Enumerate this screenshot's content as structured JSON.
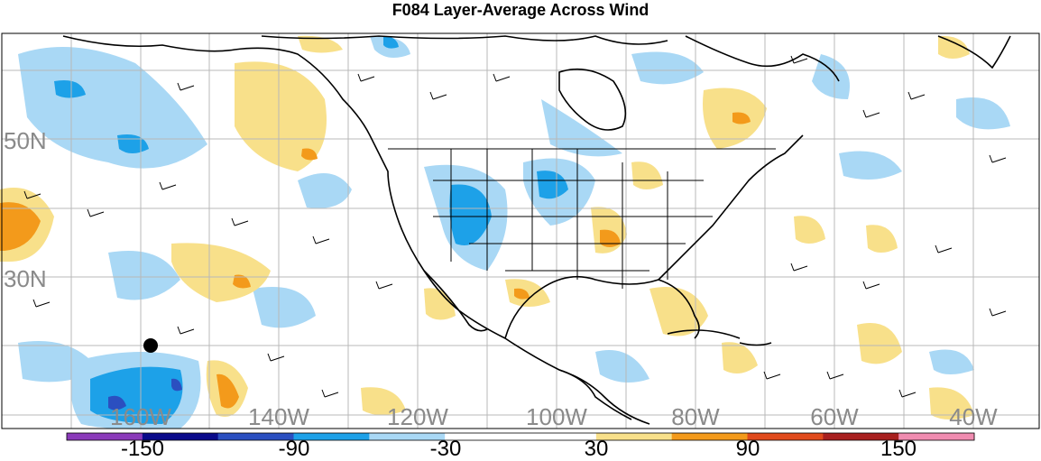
{
  "title": "F084 Layer-Average Across Wind",
  "map": {
    "lat_labels": [
      "50N",
      "30N"
    ],
    "lon_labels": [
      "160W",
      "140W",
      "120W",
      "100W",
      "80W",
      "60W",
      "40W"
    ],
    "marker": "black-dot"
  },
  "colorbar": {
    "colors": [
      "#8a3ab9",
      "#0a0a8a",
      "#2b4fc0",
      "#1da1e8",
      "#a9d8f5",
      "#ffffff",
      "#ffffff",
      "#f8e08a",
      "#f39a1b",
      "#e04a1c",
      "#a8201f",
      "#f08cb0"
    ],
    "tick_labels": [
      "-150",
      "-90",
      "-30",
      "30",
      "90",
      "150"
    ]
  },
  "legend_colors": {
    "neg_light": "#a9d8f5",
    "neg_mid": "#1da1e8",
    "neg_strong": "#2b4fc0",
    "pos_light": "#f8e08a",
    "pos_mid": "#f39a1b"
  }
}
